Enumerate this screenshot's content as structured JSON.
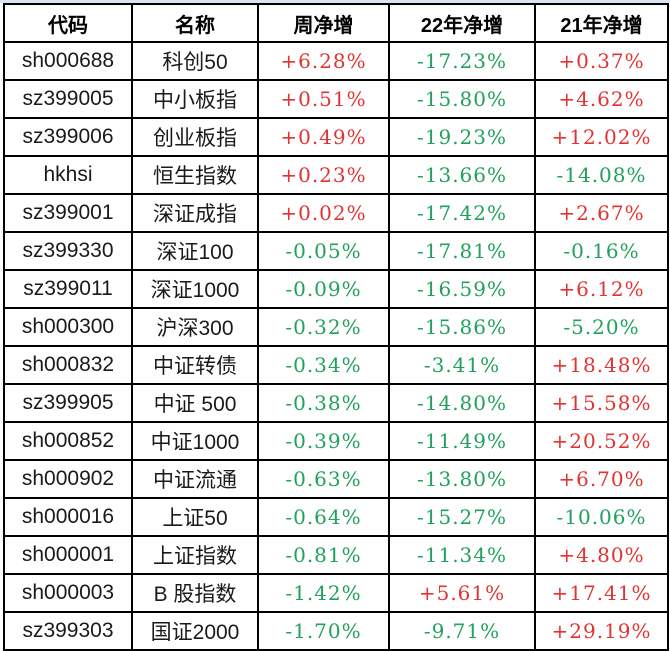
{
  "colors": {
    "up": "#e23333",
    "down": "#21a15c",
    "border": "#000000",
    "top_strip": "#dbe4f0",
    "header_text": "#000000",
    "body_text": "#1a1a1a"
  },
  "table": {
    "columns": [
      "代码",
      "名称",
      "周净增",
      "22年净增",
      "21年净增"
    ],
    "rows": [
      {
        "code": "sh000688",
        "name": "科创50",
        "week": "+6.28%",
        "y2022": "-17.23%",
        "y2021": "+0.37%"
      },
      {
        "code": "sz399005",
        "name": "中小板指",
        "week": "+0.51%",
        "y2022": "-15.80%",
        "y2021": "+4.62%"
      },
      {
        "code": "sz399006",
        "name": "创业板指",
        "week": "+0.49%",
        "y2022": "-19.23%",
        "y2021": "+12.02%"
      },
      {
        "code": "hkhsi",
        "name": "恒生指数",
        "week": "+0.23%",
        "y2022": "-13.66%",
        "y2021": "-14.08%"
      },
      {
        "code": "sz399001",
        "name": "深证成指",
        "week": "+0.02%",
        "y2022": "-17.42%",
        "y2021": "+2.67%"
      },
      {
        "code": "sz399330",
        "name": "深证100",
        "week": "-0.05%",
        "y2022": "-17.81%",
        "y2021": "-0.16%"
      },
      {
        "code": "sz399011",
        "name": "深证1000",
        "week": "-0.09%",
        "y2022": "-16.59%",
        "y2021": "+6.12%"
      },
      {
        "code": "sh000300",
        "name": "沪深300",
        "week": "-0.32%",
        "y2022": "-15.86%",
        "y2021": "-5.20%"
      },
      {
        "code": "sh000832",
        "name": "中证转债",
        "week": "-0.34%",
        "y2022": "-3.41%",
        "y2021": "+18.48%"
      },
      {
        "code": "sz399905",
        "name": "中证 500",
        "week": "-0.38%",
        "y2022": "-14.80%",
        "y2021": "+15.58%"
      },
      {
        "code": "sh000852",
        "name": "中证1000",
        "week": "-0.39%",
        "y2022": "-11.49%",
        "y2021": "+20.52%"
      },
      {
        "code": "sh000902",
        "name": "中证流通",
        "week": "-0.63%",
        "y2022": "-13.80%",
        "y2021": "+6.70%"
      },
      {
        "code": "sh000016",
        "name": "上证50",
        "week": "-0.64%",
        "y2022": "-15.27%",
        "y2021": "-10.06%"
      },
      {
        "code": "sh000001",
        "name": "上证指数",
        "week": "-0.81%",
        "y2022": "-11.34%",
        "y2021": "+4.80%"
      },
      {
        "code": "sh000003",
        "name": "B 股指数",
        "week": "-1.42%",
        "y2022": "+5.61%",
        "y2021": "+17.41%"
      },
      {
        "code": "sz399303",
        "name": "国证2000",
        "week": "-1.70%",
        "y2022": "-9.71%",
        "y2021": "+29.19%"
      }
    ]
  }
}
